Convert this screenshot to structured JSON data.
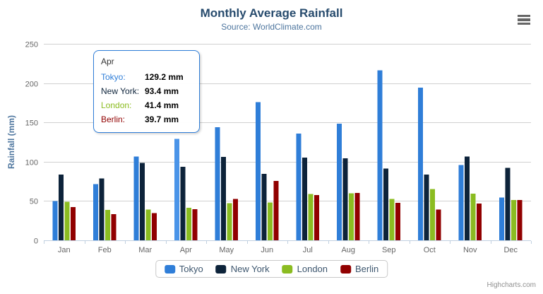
{
  "chart_data": {
    "type": "bar",
    "title": "Monthly Average Rainfall",
    "subtitle": "Source: WorldClimate.com",
    "xlabel": "",
    "ylabel": "Rainfall (mm)",
    "ylim": [
      0,
      250
    ],
    "yticks": [
      0,
      50,
      100,
      150,
      200,
      250
    ],
    "grid": true,
    "legend_position": "bottom",
    "categories": [
      "Jan",
      "Feb",
      "Mar",
      "Apr",
      "May",
      "Jun",
      "Jul",
      "Aug",
      "Sep",
      "Oct",
      "Nov",
      "Dec"
    ],
    "series": [
      {
        "name": "Tokyo",
        "color": "#2f7ed8",
        "values": [
          49.9,
          71.5,
          106.4,
          129.2,
          144.0,
          176.0,
          135.6,
          148.5,
          216.4,
          194.1,
          95.6,
          54.4
        ]
      },
      {
        "name": "New York",
        "color": "#0d233a",
        "values": [
          83.6,
          78.8,
          98.5,
          93.4,
          106.0,
          84.5,
          105.0,
          104.3,
          91.2,
          83.5,
          106.6,
          92.3
        ]
      },
      {
        "name": "London",
        "color": "#8bbc21",
        "values": [
          48.9,
          38.8,
          39.3,
          41.4,
          47.0,
          48.3,
          59.0,
          59.6,
          52.4,
          65.2,
          59.3,
          51.2
        ]
      },
      {
        "name": "Berlin",
        "color": "#910000",
        "values": [
          42.4,
          33.2,
          34.5,
          39.7,
          52.6,
          75.5,
          57.4,
          60.4,
          47.6,
          39.1,
          46.8,
          51.1
        ]
      }
    ],
    "hover": {
      "series": "Tokyo",
      "category": "Apr",
      "highlight_color": "#4a94e8"
    }
  },
  "tooltip": {
    "category": "Apr",
    "rows": [
      {
        "label": "Tokyo:",
        "value": "129.2 mm",
        "color": "#2f7ed8"
      },
      {
        "label": "New York:",
        "value": "93.4 mm",
        "color": "#0d233a"
      },
      {
        "label": "London:",
        "value": "41.4 mm",
        "color": "#8bbc21"
      },
      {
        "label": "Berlin:",
        "value": "39.7 mm",
        "color": "#910000"
      }
    ],
    "border_color": "#2f7ed8"
  },
  "credits": "Highcharts.com",
  "style": {
    "title_color": "#274b6d",
    "subtitle_color": "#4d759e",
    "y_axis_title_color": "#4d759e",
    "axis_label_color": "#666666",
    "grid_color": "#d0d0d0",
    "axis_line_color": "#c0d0e0",
    "legend_text_color": "#3e576f",
    "hamburger_color": "#666666",
    "credits_color": "#909090",
    "background_color": "#ffffff"
  }
}
